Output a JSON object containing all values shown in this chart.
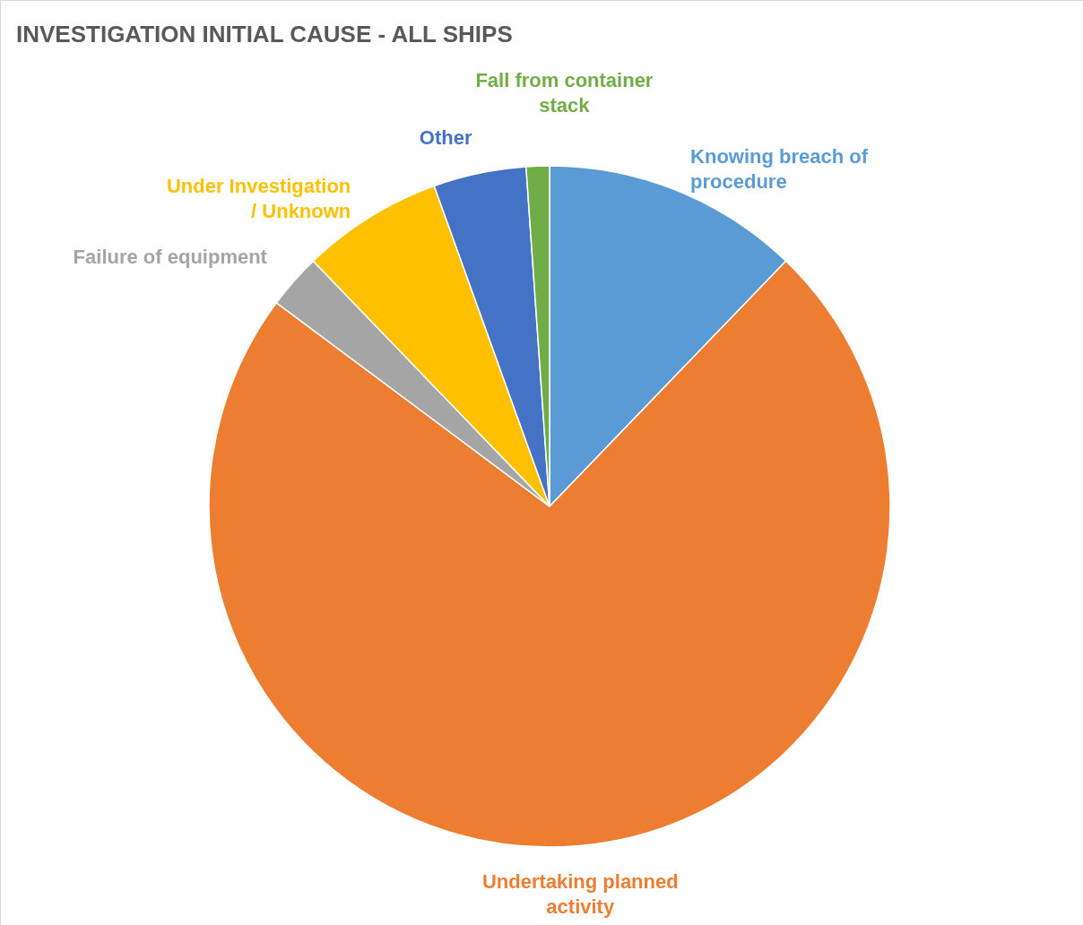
{
  "chart_data": {
    "type": "pie",
    "title": "INVESTIGATION INITIAL CAUSE - ALL SHIPS",
    "categories": [
      "Knowing breach of procedure",
      "Undertaking planned activity",
      "Failure of equipment",
      "Under Investigation / Unknown",
      "Other",
      "Fall from container stack"
    ],
    "values": [
      12.2,
      73.0,
      2.6,
      6.7,
      4.4,
      1.1
    ],
    "colors": [
      "#5b9bd5",
      "#ed7d31",
      "#a5a5a5",
      "#ffc000",
      "#4472c4",
      "#70ad47"
    ]
  }
}
